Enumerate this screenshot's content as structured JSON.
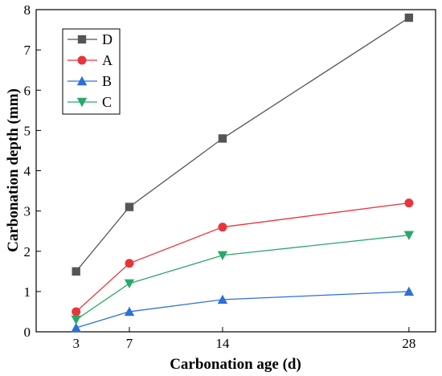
{
  "chart_data": {
    "type": "line",
    "title": "",
    "xlabel": "Carbonation age (d)",
    "ylabel": "Carbonation depth (mm)",
    "x": [
      3,
      7,
      14,
      28
    ],
    "x_ticks": [
      "3",
      "7",
      "14",
      "28"
    ],
    "xlim": [
      0,
      30
    ],
    "ylim": [
      0,
      8
    ],
    "y_ticks": [
      "0",
      "1",
      "2",
      "3",
      "4",
      "5",
      "6",
      "7",
      "8"
    ],
    "grid": false,
    "legend_position": "top-left",
    "series": [
      {
        "name": "D",
        "values": [
          1.5,
          3.1,
          4.8,
          7.8
        ],
        "color": "#555555",
        "marker": "square"
      },
      {
        "name": "A",
        "values": [
          0.5,
          1.7,
          2.6,
          3.2
        ],
        "color": "#e8353c",
        "marker": "circle"
      },
      {
        "name": "B",
        "values": [
          0.1,
          0.5,
          0.8,
          1.0
        ],
        "color": "#2f6fd8",
        "marker": "triangle-up"
      },
      {
        "name": "C",
        "values": [
          0.3,
          1.2,
          1.9,
          2.4
        ],
        "color": "#2aa86a",
        "marker": "triangle-down"
      }
    ]
  }
}
